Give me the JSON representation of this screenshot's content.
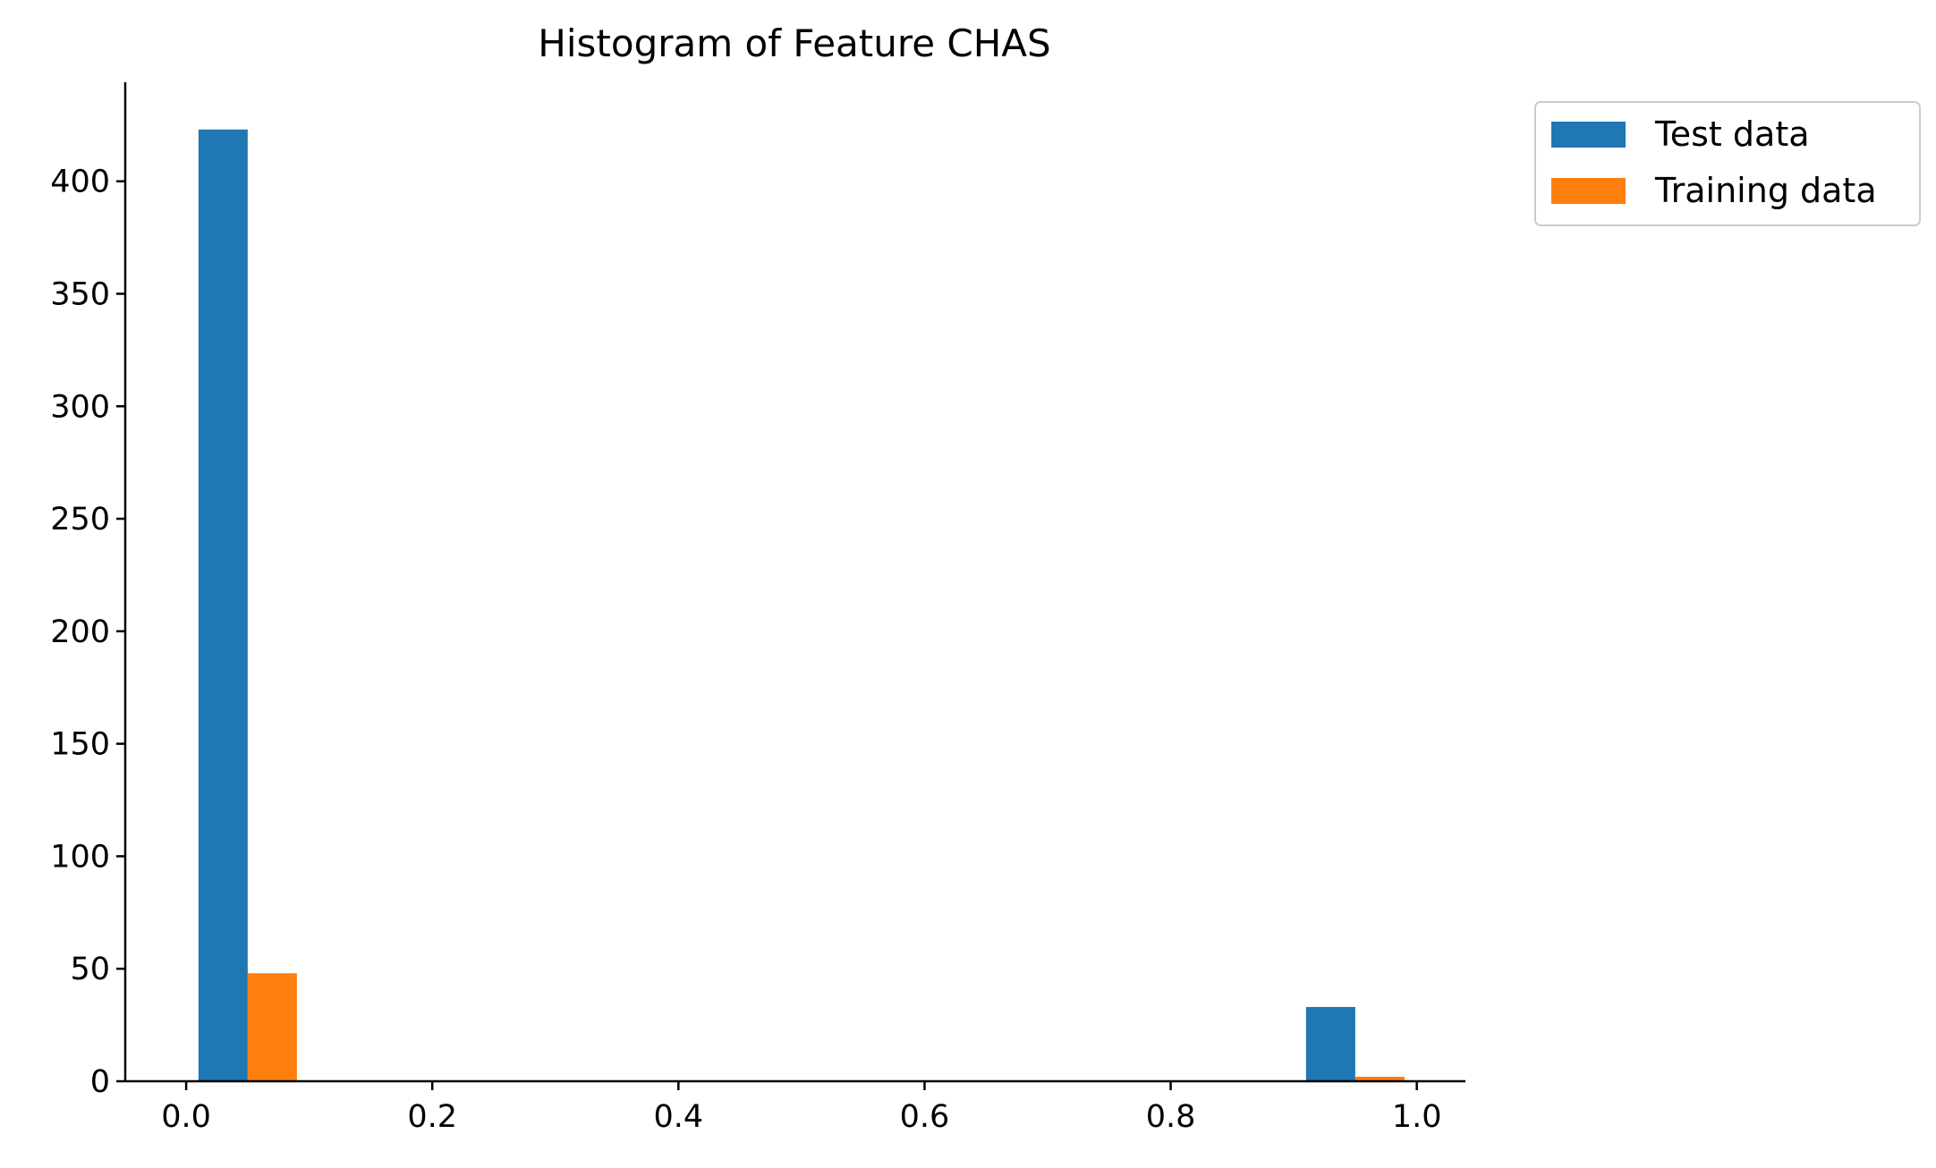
{
  "chart_data": {
    "type": "bar",
    "subtype": "histogram",
    "title": "Histogram of Feature CHAS",
    "xlabel": "",
    "ylabel": "",
    "xlim": [
      -0.0495,
      1.0395
    ],
    "ylim": [
      0,
      444
    ],
    "x_ticks": [
      "0.0",
      "0.2",
      "0.4",
      "0.6",
      "0.8",
      "1.0"
    ],
    "x_tick_values": [
      0,
      0.2,
      0.4,
      0.6,
      0.8,
      1.0
    ],
    "y_ticks": [
      "0",
      "50",
      "100",
      "150",
      "200",
      "250",
      "300",
      "350",
      "400"
    ],
    "y_tick_values": [
      0,
      50,
      100,
      150,
      200,
      250,
      300,
      350,
      400
    ],
    "bins": [
      [
        0.0,
        0.1
      ],
      [
        0.9,
        1.0
      ]
    ],
    "series": [
      {
        "name": "Test data",
        "color": "#1f77b4",
        "values": [
          423,
          33
        ]
      },
      {
        "name": "Training data",
        "color": "#ff7f0e",
        "values": [
          48,
          2
        ]
      }
    ],
    "legend_position": "outside-top-right",
    "grid": false,
    "spines": [
      "left",
      "bottom"
    ]
  }
}
